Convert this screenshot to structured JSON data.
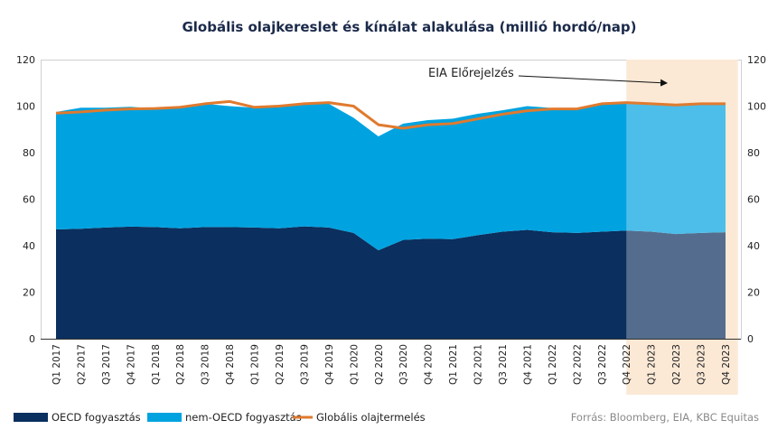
{
  "chart_data": {
    "type": "area",
    "title": "Globális olajkereslet és kínálat alakulása (millió hordó/nap)",
    "categories": [
      "Q1 2017",
      "Q2 2017",
      "Q3 2017",
      "Q4 2017",
      "Q1 2018",
      "Q2 2018",
      "Q3 2018",
      "Q4 2018",
      "Q1 2019",
      "Q2 2019",
      "Q3 2019",
      "Q4 2019",
      "Q1 2020",
      "Q2 2020",
      "Q3 2020",
      "Q4 2020",
      "Q1 2021",
      "Q2 2021",
      "Q3 2021",
      "Q4 2021",
      "Q1 2022",
      "Q2 2022",
      "Q3 2022",
      "Q4 2022",
      "Q1 2023",
      "Q2 2023",
      "Q3 2023",
      "Q4 2023"
    ],
    "ylim": [
      0,
      120
    ],
    "yticks": [
      0,
      20,
      40,
      60,
      80,
      100,
      120
    ],
    "grid": false,
    "series": [
      {
        "name": "OECD fogyasztás",
        "type": "stacked-area",
        "color": "#0b2f5e",
        "values": [
          47,
          47.3,
          47.8,
          48.2,
          48,
          47.5,
          48,
          48,
          47.8,
          47.5,
          48.3,
          47.8,
          45.5,
          38,
          42.5,
          43,
          42.8,
          44.5,
          46,
          46.8,
          45.8,
          45.5,
          46,
          46.5,
          46,
          45,
          45.5,
          45.8
        ]
      },
      {
        "name": "nem-OECD fogyasztás",
        "type": "stacked-area",
        "color": "#00a3e0",
        "values": [
          50.5,
          52,
          51.5,
          51.5,
          51,
          52,
          53,
          52,
          51.5,
          53,
          53,
          53.2,
          49.5,
          49,
          50,
          51,
          51.8,
          52.2,
          52.2,
          53.2,
          53.4,
          53.5,
          55,
          54.5,
          54.5,
          55.5,
          55.5,
          55
        ]
      },
      {
        "name": "Globális olajtermelés",
        "type": "line",
        "color": "#e07a2e",
        "values": [
          97,
          97.5,
          98.3,
          98.8,
          99,
          99.5,
          101,
          102,
          99.5,
          100,
          101,
          101.5,
          100,
          92,
          90.5,
          92,
          92.5,
          94.5,
          96.5,
          98,
          98.8,
          98.8,
          101,
          101.5,
          101,
          100.5,
          101,
          101
        ]
      }
    ],
    "forecast": {
      "start": "Q4 2022",
      "end": "Q4 2023",
      "label": "EIA Előrejelzés",
      "shade_color": "#fbe9d6"
    },
    "legend_position": "bottom-left",
    "source": "Forrás: Bloomberg,  EIA, KBC Equitas"
  }
}
